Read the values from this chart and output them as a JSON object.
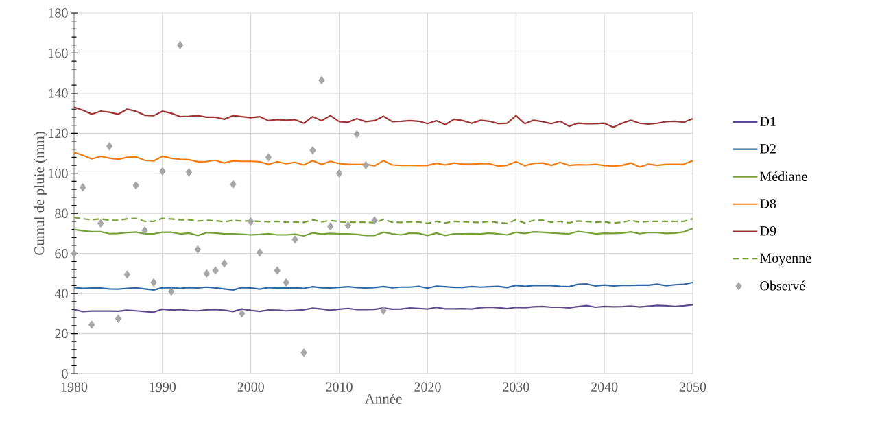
{
  "chart_data": {
    "type": "line",
    "xlabel": "Année",
    "ylabel": "Cumul de pluie (mm)",
    "x": [
      1980,
      1981,
      1982,
      1983,
      1984,
      1985,
      1986,
      1987,
      1988,
      1989,
      1990,
      1991,
      1992,
      1993,
      1994,
      1995,
      1996,
      1997,
      1998,
      1999,
      2000,
      2001,
      2002,
      2003,
      2004,
      2005,
      2006,
      2007,
      2008,
      2009,
      2010,
      2011,
      2012,
      2013,
      2014,
      2015,
      2016,
      2017,
      2018,
      2019,
      2020,
      2021,
      2022,
      2023,
      2024,
      2025,
      2026,
      2027,
      2028,
      2029,
      2030,
      2031,
      2032,
      2033,
      2034,
      2035,
      2036,
      2037,
      2038,
      2039,
      2040,
      2041,
      2042,
      2043,
      2044,
      2045,
      2046,
      2047,
      2048,
      2049,
      2050
    ],
    "series": [
      {
        "name": "D1",
        "color": "#5f4b8b",
        "values": [
          32,
          31,
          31.3,
          31.3,
          31.3,
          31.2,
          31.7,
          31.4,
          31,
          30.7,
          32.2,
          31.8,
          32,
          31.5,
          31.4,
          31.9,
          32,
          31.7,
          31,
          32.3,
          31.6,
          31.1,
          31.8,
          31.7,
          31.4,
          31.6,
          31.9,
          32.7,
          32.3,
          31.7,
          32.2,
          32.6,
          32,
          32,
          32.1,
          32.8,
          32.2,
          32.3,
          32.8,
          32.6,
          32.3,
          33.1,
          32.4,
          32.4,
          32.5,
          32.3,
          33,
          33.2,
          33,
          32.5,
          33.1,
          33,
          33.4,
          33.6,
          33.2,
          33.2,
          32.9,
          33.5,
          34,
          33.2,
          33.6,
          33.4,
          33.5,
          33.8,
          33.3,
          33.7,
          34.1,
          33.9,
          33.6,
          33.9,
          34.4
        ]
      },
      {
        "name": "D2",
        "color": "#2e67a5",
        "values": [
          43,
          42.6,
          42.7,
          42.7,
          42.3,
          42.2,
          42.6,
          42.8,
          42.3,
          41.8,
          42.9,
          43,
          42.6,
          43,
          42.8,
          43.2,
          42.8,
          42.3,
          41.8,
          43,
          42.8,
          42.2,
          43,
          42.7,
          42.8,
          42.9,
          42.6,
          43.4,
          42.9,
          42.8,
          43.1,
          43.4,
          43,
          42.8,
          43,
          43.5,
          42.9,
          43.2,
          43.2,
          43.6,
          42.7,
          43.7,
          43.4,
          43.1,
          43.1,
          43.5,
          43.2,
          43.4,
          43.6,
          43,
          44.1,
          43.6,
          44,
          44,
          44,
          43.6,
          43.4,
          44.6,
          44.8,
          43.8,
          44.3,
          43.8,
          44.1,
          44.1,
          44.2,
          44.2,
          44.7,
          43.9,
          44.4,
          44.6,
          45.5
        ]
      },
      {
        "name": "Médiane",
        "color": "#77a03a",
        "values": [
          72,
          71.3,
          70.9,
          70.9,
          69.9,
          70,
          70.4,
          70.7,
          69.8,
          69.8,
          70.6,
          70.6,
          69.8,
          70.2,
          69,
          70.4,
          70.2,
          69.8,
          69.8,
          69.6,
          69.3,
          69.5,
          69.9,
          69.3,
          69.3,
          69.6,
          68.8,
          70.3,
          69.7,
          70,
          69.8,
          69.8,
          69.5,
          69,
          69,
          70.6,
          69.8,
          69.3,
          70.2,
          70,
          69,
          70.2,
          69,
          69.8,
          69.8,
          69.9,
          69.8,
          70.2,
          69.8,
          69.3,
          70.6,
          70,
          70.8,
          70.6,
          70.3,
          70,
          69.8,
          71,
          70.5,
          69.8,
          70.1,
          70,
          70.2,
          70.8,
          69.9,
          70.5,
          70.4,
          70,
          70.2,
          70.8,
          72.5
        ]
      },
      {
        "name": "D8",
        "color": "#f07b13",
        "values": [
          110.5,
          109,
          107.2,
          108.5,
          107.6,
          107,
          108,
          108.2,
          106.5,
          106.2,
          108.5,
          107.5,
          107,
          106.8,
          105.8,
          105.9,
          106.5,
          105.2,
          106.2,
          106,
          106,
          105.8,
          104.5,
          105.8,
          104.8,
          105.5,
          104.2,
          106.3,
          104.5,
          106,
          104.9,
          104.5,
          104.4,
          104.5,
          103.8,
          106.3,
          104.2,
          104,
          104,
          103.9,
          104,
          105,
          104.2,
          105.2,
          104.6,
          104.6,
          104.8,
          104.8,
          103.6,
          104,
          105.8,
          103.8,
          105,
          105.2,
          104,
          105.5,
          104,
          104.3,
          104.2,
          104.5,
          103.9,
          103.6,
          104,
          105.2,
          103.2,
          104.6,
          104,
          104.5,
          104.5,
          104.6,
          106.3
        ]
      },
      {
        "name": "D9",
        "color": "#9e3434",
        "values": [
          133,
          131.5,
          129.5,
          131,
          130.5,
          129.5,
          132,
          131,
          129,
          128.8,
          131,
          130,
          128.3,
          128.5,
          128.8,
          128,
          128,
          127,
          128.8,
          128.3,
          127.8,
          128.3,
          126.3,
          126.8,
          126.5,
          126.8,
          125,
          128.3,
          126.3,
          128.8,
          125.8,
          125.5,
          127.3,
          125.8,
          126.3,
          128.5,
          125.8,
          126,
          126.3,
          126,
          124.8,
          126.3,
          124.3,
          127,
          126.3,
          125,
          126.5,
          126,
          124.8,
          125,
          128.8,
          124.8,
          126.5,
          125.8,
          124.8,
          126,
          123.5,
          125,
          124.8,
          124.8,
          125,
          123,
          125,
          126.5,
          125,
          124.6,
          125,
          125.8,
          126,
          125.5,
          127.3
        ]
      },
      {
        "name": "Moyenne",
        "color": "#77a03a",
        "line_style": "dashed",
        "values": [
          78,
          77.3,
          76.8,
          77.3,
          76.5,
          76.5,
          77.3,
          77.5,
          76,
          76,
          77.5,
          77.2,
          76.8,
          76.8,
          76.2,
          76.5,
          76.3,
          75.8,
          76.5,
          76.2,
          76.2,
          76,
          75.8,
          76,
          75.6,
          75.7,
          75.5,
          76.8,
          75.7,
          76.5,
          75.8,
          75.6,
          75.6,
          75.6,
          75.3,
          77,
          75.6,
          75.5,
          75.8,
          75.7,
          75,
          76,
          75.2,
          76,
          75.8,
          75.6,
          75.5,
          76,
          75.4,
          75,
          76.8,
          75.2,
          76.5,
          76.6,
          75.6,
          76,
          75.3,
          76.2,
          75.9,
          75.6,
          75.8,
          75.2,
          75.6,
          76.5,
          75.6,
          76,
          76,
          76,
          76,
          76,
          77.3
        ]
      },
      {
        "name": "Observé",
        "type": "scatter",
        "marker": "diamond",
        "color": "#a6a6a6",
        "x": [
          1980,
          1981,
          1982,
          1983,
          1984,
          1985,
          1986,
          1987,
          1988,
          1989,
          1990,
          1991,
          1992,
          1993,
          1994,
          1995,
          1996,
          1997,
          1998,
          1999,
          2000,
          2001,
          2002,
          2003,
          2004,
          2005,
          2006,
          2007,
          2008,
          2009,
          2010,
          2011,
          2012,
          2013,
          2014,
          2015
        ],
        "values": [
          60,
          93,
          24.5,
          75,
          113.5,
          27.5,
          49.5,
          94,
          71.5,
          45.5,
          101,
          41,
          164,
          100.5,
          62,
          50,
          51.5,
          55,
          94.5,
          30,
          76,
          60.5,
          108,
          51.5,
          45.5,
          67,
          10.5,
          111.5,
          146.5,
          73.5,
          100,
          74,
          119.5,
          104,
          76.5,
          31.5
        ]
      }
    ],
    "marker": "none",
    "line_style": "solid",
    "xlim": [
      1980,
      2050
    ],
    "xticks": [
      1980,
      1990,
      2000,
      2010,
      2020,
      2030,
      2040,
      2050
    ],
    "ylim": [
      0,
      180
    ],
    "yticks": [
      0,
      20,
      40,
      60,
      80,
      100,
      120,
      140,
      160,
      180
    ],
    "grid": true,
    "legend": "right"
  }
}
